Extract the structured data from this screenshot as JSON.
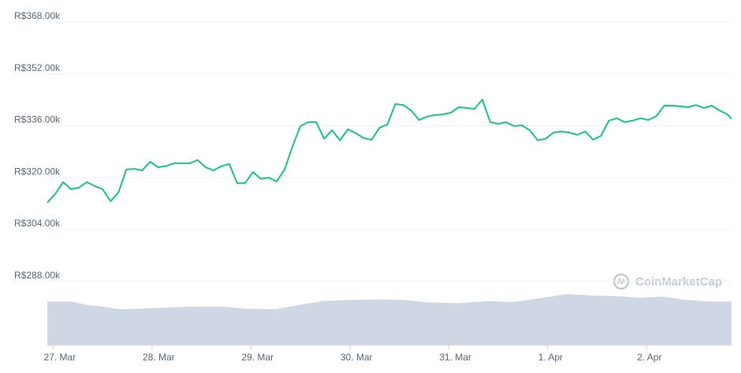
{
  "chart_data": {
    "type": "line",
    "watermark": "CoinMarketCap",
    "xlim": [
      -0.06,
      6.86
    ],
    "xticks": [
      {
        "value": 0,
        "label": "27. Mar"
      },
      {
        "value": 1,
        "label": "28. Mar"
      },
      {
        "value": 2,
        "label": "29. Mar"
      },
      {
        "value": 3,
        "label": "30. Mar"
      },
      {
        "value": 4,
        "label": "31. Mar"
      },
      {
        "value": 5,
        "label": "1. Apr"
      },
      {
        "value": 6,
        "label": "2. Apr"
      }
    ],
    "ylim": [
      266.5,
      368
    ],
    "yticks": [
      {
        "value": 288,
        "label": "R$288.00k"
      },
      {
        "value": 304,
        "label": "R$304.00k"
      },
      {
        "value": 320,
        "label": "R$320.00k"
      },
      {
        "value": 336,
        "label": "R$336.00k"
      },
      {
        "value": 352,
        "label": "R$352.00k"
      },
      {
        "value": 368,
        "label": "R$368.00k"
      }
    ],
    "y2lim": [
      0,
      600
    ],
    "grid": true,
    "series": [
      {
        "color": "#16c784",
        "x": [
          -0.06,
          0.02,
          0.1,
          0.18,
          0.26,
          0.34,
          0.42,
          0.5,
          0.58,
          0.66,
          0.74,
          0.82,
          0.9,
          0.98,
          1.06,
          1.14,
          1.22,
          1.3,
          1.38,
          1.46,
          1.54,
          1.62,
          1.7,
          1.78,
          1.86,
          1.94,
          2.02,
          2.1,
          2.18,
          2.26,
          2.34,
          2.42,
          2.5,
          2.58,
          2.66,
          2.74,
          2.82,
          2.9,
          2.98,
          3.06,
          3.14,
          3.22,
          3.3,
          3.38,
          3.46,
          3.54,
          3.62,
          3.7,
          3.78,
          3.86,
          3.94,
          4.02,
          4.1,
          4.18,
          4.26,
          4.34,
          4.42,
          4.5,
          4.58,
          4.66,
          4.74,
          4.82,
          4.9,
          4.98,
          5.06,
          5.14,
          5.22,
          5.3,
          5.38,
          5.46,
          5.54,
          5.62,
          5.7,
          5.78,
          5.86,
          5.94,
          6.02,
          6.1,
          6.18,
          6.26,
          6.34,
          6.42,
          6.5,
          6.58,
          6.66,
          6.74,
          6.82,
          6.86
        ],
        "values": [
          310.6,
          313.2,
          316.9,
          314.7,
          315.2,
          316.9,
          315.7,
          314.7,
          311.0,
          313.7,
          320.8,
          321.0,
          320.5,
          323.2,
          321.5,
          321.8,
          322.7,
          322.7,
          322.7,
          323.7,
          321.5,
          320.5,
          321.8,
          322.5,
          316.6,
          316.6,
          320.0,
          317.9,
          318.3,
          317.1,
          320.8,
          327.9,
          334.2,
          335.4,
          335.4,
          330.3,
          332.9,
          329.8,
          333.2,
          332.0,
          330.5,
          330.0,
          333.7,
          334.7,
          341.0,
          340.7,
          339.0,
          336.1,
          337.1,
          337.6,
          337.8,
          338.3,
          340.0,
          339.8,
          339.5,
          342.4,
          335.4,
          334.9,
          335.4,
          334.2,
          334.4,
          332.9,
          329.8,
          330.3,
          332.2,
          332.5,
          332.2,
          331.5,
          332.5,
          330.0,
          331.2,
          335.9,
          336.6,
          335.4,
          335.9,
          336.6,
          336.1,
          337.3,
          340.5,
          340.5,
          340.3,
          340.0,
          340.7,
          339.8,
          340.5,
          339.0,
          337.8,
          336.4
        ]
      },
      {
        "color": "#cfd6e4",
        "axis": "y2",
        "x": [
          -0.06,
          0.18,
          0.34,
          0.5,
          0.66,
          0.9,
          1.14,
          1.46,
          1.7,
          1.94,
          2.25,
          2.49,
          2.73,
          3.05,
          3.29,
          3.53,
          3.77,
          4.09,
          4.41,
          4.65,
          4.96,
          5.2,
          5.44,
          5.68,
          5.92,
          6.16,
          6.4,
          6.64,
          6.86
        ],
        "values": [
          80,
          80,
          74,
          71,
          66,
          67,
          69,
          71,
          71,
          67,
          66,
          74,
          81,
          83,
          84,
          83,
          79,
          77,
          81,
          79,
          87,
          94,
          91,
          90,
          87,
          89,
          83,
          80,
          80
        ]
      }
    ]
  }
}
